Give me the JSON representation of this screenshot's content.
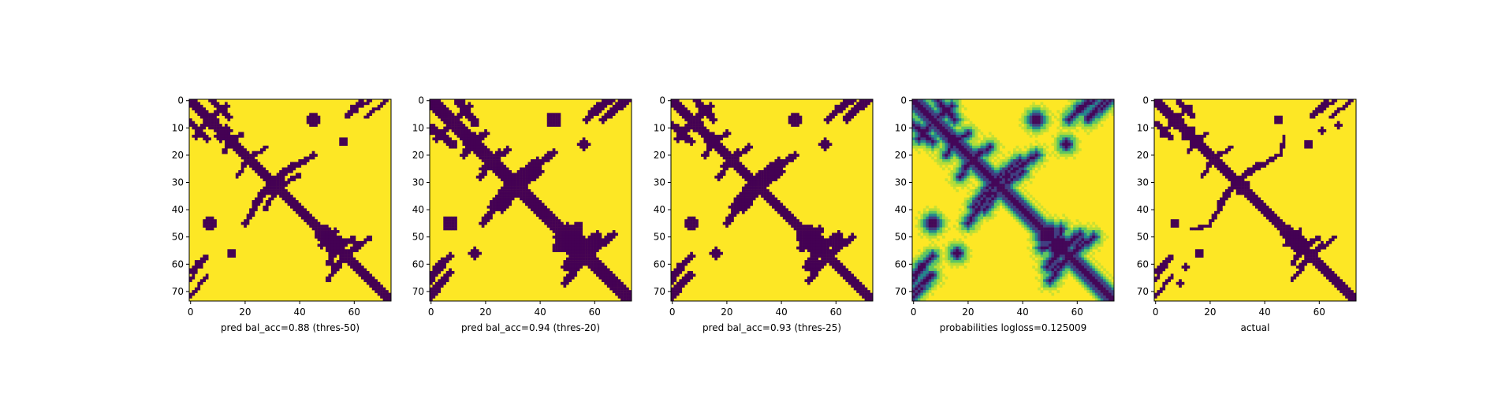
{
  "chart_data": [
    {
      "type": "heatmap",
      "title": "",
      "xlabel": "pred bal_acc=0.88 (thres-50)",
      "ylabel": "",
      "grid": false,
      "colormap": "viridis",
      "style": "binary",
      "size": 74,
      "xlim": [
        0,
        73
      ],
      "ylim": [
        73,
        0
      ],
      "xticks": [
        0,
        20,
        40,
        60
      ],
      "yticks": [
        0,
        10,
        20,
        30,
        40,
        50,
        60,
        70
      ],
      "diagonal_halfwidth": 1.8,
      "segments": [
        {
          "from": [
            0,
            8
          ],
          "to": [
            6,
            14
          ],
          "hw": 1.1
        },
        {
          "from": [
            8,
            6
          ],
          "to": [
            13,
            2
          ],
          "hw": 1.0
        },
        {
          "from": [
            13,
            16
          ],
          "to": [
            19,
            12
          ],
          "hw": 0.9
        },
        {
          "from": [
            19,
            23
          ],
          "to": [
            28,
            17
          ],
          "hw": 0.8
        },
        {
          "from": [
            29,
            30
          ],
          "to": [
            45,
            20
          ],
          "hw": 1.0
        },
        {
          "from": [
            31,
            28
          ],
          "to": [
            38,
            23
          ],
          "hw": 0.8
        },
        {
          "from": [
            29,
            34
          ],
          "to": [
            40,
            27
          ],
          "hw": 0.9
        },
        {
          "from": [
            51,
            58
          ],
          "to": [
            60,
            50
          ],
          "hw": 0.9
        },
        {
          "from": [
            52,
            61
          ],
          "to": [
            66,
            50
          ],
          "hw": 0.9
        },
        {
          "from": [
            48,
            53
          ],
          "to": [
            56,
            52
          ],
          "hw": 1.0
        },
        {
          "from": [
            0,
            63
          ],
          "to": [
            6,
            57
          ],
          "hw": 0.9
        },
        {
          "from": [
            60,
            3
          ],
          "to": [
            66,
            0
          ],
          "hw": 0.8
        },
        {
          "from": [
            64,
            6
          ],
          "to": [
            72,
            0
          ],
          "hw": 0.8
        }
      ],
      "blobs": [
        {
          "c": [
            45,
            7
          ],
          "r": 2.4
        },
        {
          "c": [
            7,
            45
          ],
          "r": 2.2
        },
        {
          "c": [
            56,
            15
          ],
          "r": 1.6
        },
        {
          "c": [
            15,
            56
          ],
          "r": 1.6
        },
        {
          "c": [
            48,
            49
          ],
          "r": 2.4
        },
        {
          "c": [
            54,
            52
          ],
          "r": 2.4
        },
        {
          "c": [
            13,
            11
          ],
          "r": 2.0
        },
        {
          "c": [
            8,
            9
          ],
          "r": 1.8
        },
        {
          "c": [
            3,
            60
          ],
          "r": 1.6
        }
      ]
    },
    {
      "type": "heatmap",
      "title": "",
      "xlabel": "pred bal_acc=0.94 (thres-20)",
      "ylabel": "",
      "grid": false,
      "colormap": "viridis",
      "style": "binary",
      "size": 74,
      "xlim": [
        0,
        73
      ],
      "ylim": [
        73,
        0
      ],
      "xticks": [
        0,
        20,
        40,
        60
      ],
      "yticks": [
        0,
        10,
        20,
        30,
        40,
        50,
        60,
        70
      ],
      "diagonal_halfwidth": 2.3,
      "segments": [
        {
          "from": [
            0,
            10
          ],
          "to": [
            8,
            16
          ],
          "hw": 1.6
        },
        {
          "from": [
            8,
            8
          ],
          "to": [
            14,
            2
          ],
          "hw": 1.4
        },
        {
          "from": [
            14,
            16
          ],
          "to": [
            20,
            12
          ],
          "hw": 1.2
        },
        {
          "from": [
            19,
            25
          ],
          "to": [
            28,
            18
          ],
          "hw": 1.1
        },
        {
          "from": [
            29,
            31
          ],
          "to": [
            45,
            19
          ],
          "hw": 1.4
        },
        {
          "from": [
            31,
            28
          ],
          "to": [
            39,
            22
          ],
          "hw": 1.2
        },
        {
          "from": [
            28,
            35
          ],
          "to": [
            40,
            26
          ],
          "hw": 1.3
        },
        {
          "from": [
            50,
            59
          ],
          "to": [
            61,
            49
          ],
          "hw": 1.3
        },
        {
          "from": [
            51,
            62
          ],
          "to": [
            67,
            49
          ],
          "hw": 1.3
        },
        {
          "from": [
            46,
            54
          ],
          "to": [
            58,
            52
          ],
          "hw": 1.5
        },
        {
          "from": [
            0,
            64
          ],
          "to": [
            7,
            57
          ],
          "hw": 1.3
        },
        {
          "from": [
            0,
            70
          ],
          "to": [
            7,
            63
          ],
          "hw": 1.1
        },
        {
          "from": [
            59,
            4
          ],
          "to": [
            66,
            0
          ],
          "hw": 1.2
        },
        {
          "from": [
            63,
            7
          ],
          "to": [
            72,
            0
          ],
          "hw": 1.2
        }
      ],
      "blobs": [
        {
          "c": [
            45,
            7
          ],
          "r": 2.9
        },
        {
          "c": [
            7,
            45
          ],
          "r": 2.9
        },
        {
          "c": [
            56,
            16
          ],
          "r": 2.2
        },
        {
          "c": [
            16,
            56
          ],
          "r": 2.2
        },
        {
          "c": [
            48,
            50
          ],
          "r": 3.0
        },
        {
          "c": [
            54,
            52
          ],
          "r": 3.0
        },
        {
          "c": [
            15,
            15
          ],
          "r": 3.2
        },
        {
          "c": [
            9,
            9
          ],
          "r": 2.6
        },
        {
          "c": [
            3,
            61
          ],
          "r": 2.0
        }
      ]
    },
    {
      "type": "heatmap",
      "title": "",
      "xlabel": "pred bal_acc=0.93 (thres-25)",
      "ylabel": "",
      "grid": false,
      "colormap": "viridis",
      "style": "binary",
      "size": 74,
      "xlim": [
        0,
        73
      ],
      "ylim": [
        73,
        0
      ],
      "xticks": [
        0,
        20,
        40,
        60
      ],
      "yticks": [
        0,
        10,
        20,
        30,
        40,
        50,
        60,
        70
      ],
      "diagonal_halfwidth": 2.1,
      "segments": [
        {
          "from": [
            0,
            9
          ],
          "to": [
            7,
            15
          ],
          "hw": 1.4
        },
        {
          "from": [
            8,
            7
          ],
          "to": [
            14,
            2
          ],
          "hw": 1.2
        },
        {
          "from": [
            14,
            16
          ],
          "to": [
            20,
            12
          ],
          "hw": 1.1
        },
        {
          "from": [
            19,
            24
          ],
          "to": [
            28,
            17
          ],
          "hw": 1.0
        },
        {
          "from": [
            29,
            31
          ],
          "to": [
            45,
            20
          ],
          "hw": 1.3
        },
        {
          "from": [
            31,
            28
          ],
          "to": [
            39,
            22
          ],
          "hw": 1.1
        },
        {
          "from": [
            28,
            35
          ],
          "to": [
            40,
            26
          ],
          "hw": 1.2
        },
        {
          "from": [
            50,
            59
          ],
          "to": [
            61,
            49
          ],
          "hw": 1.2
        },
        {
          "from": [
            51,
            62
          ],
          "to": [
            66,
            50
          ],
          "hw": 1.2
        },
        {
          "from": [
            47,
            54
          ],
          "to": [
            57,
            52
          ],
          "hw": 1.3
        },
        {
          "from": [
            0,
            64
          ],
          "to": [
            7,
            57
          ],
          "hw": 1.2
        },
        {
          "from": [
            0,
            70
          ],
          "to": [
            6,
            64
          ],
          "hw": 1.0
        },
        {
          "from": [
            60,
            4
          ],
          "to": [
            66,
            0
          ],
          "hw": 1.0
        },
        {
          "from": [
            64,
            7
          ],
          "to": [
            72,
            0
          ],
          "hw": 1.0
        }
      ],
      "blobs": [
        {
          "c": [
            45,
            7
          ],
          "r": 2.7
        },
        {
          "c": [
            7,
            45
          ],
          "r": 2.6
        },
        {
          "c": [
            56,
            16
          ],
          "r": 2.0
        },
        {
          "c": [
            16,
            56
          ],
          "r": 2.0
        },
        {
          "c": [
            48,
            50
          ],
          "r": 2.8
        },
        {
          "c": [
            54,
            52
          ],
          "r": 2.8
        },
        {
          "c": [
            14,
            14
          ],
          "r": 2.8
        },
        {
          "c": [
            9,
            9
          ],
          "r": 2.3
        },
        {
          "c": [
            3,
            61
          ],
          "r": 1.8
        }
      ]
    },
    {
      "type": "heatmap",
      "title": "",
      "xlabel": "probabilities logloss=0.125009",
      "ylabel": "",
      "grid": false,
      "colormap": "viridis",
      "style": "probability",
      "size": 74,
      "xlim": [
        0,
        73
      ],
      "ylim": [
        73,
        0
      ],
      "xticks": [
        0,
        20,
        40,
        60
      ],
      "yticks": [
        0,
        10,
        20,
        30,
        40,
        50,
        60,
        70
      ],
      "diagonal_halfwidth": 2.0,
      "segments": [
        {
          "from": [
            0,
            9
          ],
          "to": [
            7,
            15
          ],
          "hw": 1.2
        },
        {
          "from": [
            8,
            7
          ],
          "to": [
            14,
            2
          ],
          "hw": 1.0
        },
        {
          "from": [
            14,
            16
          ],
          "to": [
            20,
            12
          ],
          "hw": 0.9
        },
        {
          "from": [
            19,
            24
          ],
          "to": [
            28,
            17
          ],
          "hw": 0.9
        },
        {
          "from": [
            29,
            31
          ],
          "to": [
            45,
            20
          ],
          "hw": 1.1
        },
        {
          "from": [
            31,
            28
          ],
          "to": [
            39,
            22
          ],
          "hw": 1.0
        },
        {
          "from": [
            28,
            35
          ],
          "to": [
            40,
            26
          ],
          "hw": 1.0
        },
        {
          "from": [
            50,
            59
          ],
          "to": [
            61,
            49
          ],
          "hw": 1.0
        },
        {
          "from": [
            51,
            62
          ],
          "to": [
            66,
            50
          ],
          "hw": 1.0
        },
        {
          "from": [
            47,
            54
          ],
          "to": [
            57,
            52
          ],
          "hw": 1.1
        },
        {
          "from": [
            0,
            64
          ],
          "to": [
            7,
            57
          ],
          "hw": 1.0
        },
        {
          "from": [
            0,
            70
          ],
          "to": [
            6,
            64
          ],
          "hw": 0.9
        },
        {
          "from": [
            60,
            4
          ],
          "to": [
            66,
            0
          ],
          "hw": 0.9
        },
        {
          "from": [
            64,
            7
          ],
          "to": [
            72,
            0
          ],
          "hw": 0.9
        }
      ],
      "blobs": [
        {
          "c": [
            45,
            7
          ],
          "r": 2.4
        },
        {
          "c": [
            7,
            45
          ],
          "r": 2.4
        },
        {
          "c": [
            56,
            16
          ],
          "r": 1.8
        },
        {
          "c": [
            16,
            56
          ],
          "r": 1.8
        },
        {
          "c": [
            48,
            50
          ],
          "r": 2.4
        },
        {
          "c": [
            54,
            52
          ],
          "r": 2.4
        },
        {
          "c": [
            14,
            14
          ],
          "r": 2.4
        },
        {
          "c": [
            9,
            9
          ],
          "r": 2.0
        },
        {
          "c": [
            3,
            61
          ],
          "r": 1.6
        }
      ]
    },
    {
      "type": "heatmap",
      "title": "",
      "xlabel": "actual",
      "ylabel": "",
      "grid": false,
      "colormap": "viridis",
      "style": "binary",
      "size": 74,
      "xlim": [
        0,
        73
      ],
      "ylim": [
        73,
        0
      ],
      "xticks": [
        0,
        20,
        40,
        60
      ],
      "yticks": [
        0,
        10,
        20,
        30,
        40,
        50,
        60,
        70
      ],
      "diagonal_halfwidth": 1.6,
      "segments": [
        {
          "from": [
            0,
            8
          ],
          "to": [
            6,
            14
          ],
          "hw": 0.9
        },
        {
          "from": [
            8,
            6
          ],
          "to": [
            13,
            2
          ],
          "hw": 0.8
        },
        {
          "from": [
            14,
            15
          ],
          "to": [
            19,
            12
          ],
          "hw": 0.8
        },
        {
          "from": [
            19,
            23
          ],
          "to": [
            28,
            17
          ],
          "hw": 0.7
        },
        {
          "from": [
            29,
            30
          ],
          "to": [
            45,
            20
          ],
          "hw": 0.8
        },
        {
          "from": [
            31,
            28
          ],
          "to": [
            38,
            23
          ],
          "hw": 0.7
        },
        {
          "from": [
            51,
            58
          ],
          "to": [
            60,
            50
          ],
          "hw": 0.8
        },
        {
          "from": [
            52,
            61
          ],
          "to": [
            66,
            50
          ],
          "hw": 0.7
        },
        {
          "from": [
            47,
            53
          ],
          "to": [
            56,
            52
          ],
          "hw": 0.9
        },
        {
          "from": [
            0,
            63
          ],
          "to": [
            6,
            57
          ],
          "hw": 0.8
        },
        {
          "from": [
            60,
            3
          ],
          "to": [
            66,
            0
          ],
          "hw": 0.7
        },
        {
          "from": [
            64,
            6
          ],
          "to": [
            72,
            0
          ],
          "hw": 0.7
        },
        {
          "from": [
            13,
            47
          ],
          "to": [
            20,
            46
          ],
          "hw": 0.7
        }
      ],
      "blobs": [
        {
          "c": [
            45,
            7
          ],
          "r": 1.9
        },
        {
          "c": [
            7,
            45
          ],
          "r": 1.9
        },
        {
          "c": [
            56,
            16
          ],
          "r": 1.5
        },
        {
          "c": [
            16,
            56
          ],
          "r": 1.5
        },
        {
          "c": [
            48,
            49
          ],
          "r": 2.0
        },
        {
          "c": [
            54,
            52
          ],
          "r": 2.0
        },
        {
          "c": [
            13,
            11
          ],
          "r": 1.7
        },
        {
          "c": [
            8,
            9
          ],
          "r": 1.5
        },
        {
          "c": [
            3,
            61
          ],
          "r": 1.3
        },
        {
          "c": [
            33,
            31
          ],
          "r": 1.8
        },
        {
          "c": [
            9,
            67
          ],
          "r": 1.0
        },
        {
          "c": [
            61,
            11
          ],
          "r": 1.0
        }
      ]
    }
  ]
}
